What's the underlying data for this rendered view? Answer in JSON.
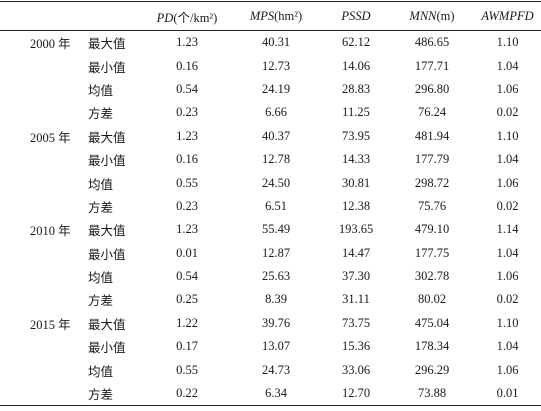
{
  "headers": [
    {
      "var": "PD",
      "unit": "(个/km²)"
    },
    {
      "var": "MPS",
      "unit": "(hm²)"
    },
    {
      "var": "PSSD",
      "unit": ""
    },
    {
      "var": "MNN",
      "unit": "(m)"
    },
    {
      "var": "AWMPFD",
      "unit": ""
    }
  ],
  "rows": [
    {
      "year": "2000 年",
      "stat": "最大值",
      "values": [
        "1.23",
        "40.31",
        "62.12",
        "486.65",
        "1.10"
      ]
    },
    {
      "year": "",
      "stat": "最小值",
      "values": [
        "0.16",
        "12.73",
        "14.06",
        "177.71",
        "1.04"
      ]
    },
    {
      "year": "",
      "stat": "均值",
      "values": [
        "0.54",
        "24.19",
        "28.83",
        "296.80",
        "1.06"
      ]
    },
    {
      "year": "",
      "stat": "方差",
      "values": [
        "0.23",
        "6.66",
        "11.25",
        "76.24",
        "0.02"
      ]
    },
    {
      "year": "2005 年",
      "stat": "最大值",
      "values": [
        "1.23",
        "40.37",
        "73.95",
        "481.94",
        "1.10"
      ]
    },
    {
      "year": "",
      "stat": "最小值",
      "values": [
        "0.16",
        "12.78",
        "14.33",
        "177.79",
        "1.04"
      ]
    },
    {
      "year": "",
      "stat": "均值",
      "values": [
        "0.55",
        "24.50",
        "30.81",
        "298.72",
        "1.06"
      ]
    },
    {
      "year": "",
      "stat": "方差",
      "values": [
        "0.23",
        "6.51",
        "12.38",
        "75.76",
        "0.02"
      ]
    },
    {
      "year": "2010 年",
      "stat": "最大值",
      "values": [
        "1.23",
        "55.49",
        "193.65",
        "479.10",
        "1.14"
      ]
    },
    {
      "year": "",
      "stat": "最小值",
      "values": [
        "0.01",
        "12.87",
        "14.47",
        "177.75",
        "1.04"
      ]
    },
    {
      "year": "",
      "stat": "均值",
      "values": [
        "0.54",
        "25.63",
        "37.30",
        "302.78",
        "1.06"
      ]
    },
    {
      "year": "",
      "stat": "方差",
      "values": [
        "0.25",
        "8.39",
        "31.11",
        "80.02",
        "0.02"
      ]
    },
    {
      "year": "2015 年",
      "stat": "最大值",
      "values": [
        "1.22",
        "39.76",
        "73.75",
        "475.04",
        "1.10"
      ]
    },
    {
      "year": "",
      "stat": "最小值",
      "values": [
        "0.17",
        "13.07",
        "15.36",
        "178.34",
        "1.04"
      ]
    },
    {
      "year": "",
      "stat": "均值",
      "values": [
        "0.55",
        "24.73",
        "33.06",
        "296.29",
        "1.06"
      ]
    },
    {
      "year": "",
      "stat": "方差",
      "values": [
        "0.22",
        "6.34",
        "12.70",
        "73.88",
        "0.01"
      ]
    }
  ]
}
